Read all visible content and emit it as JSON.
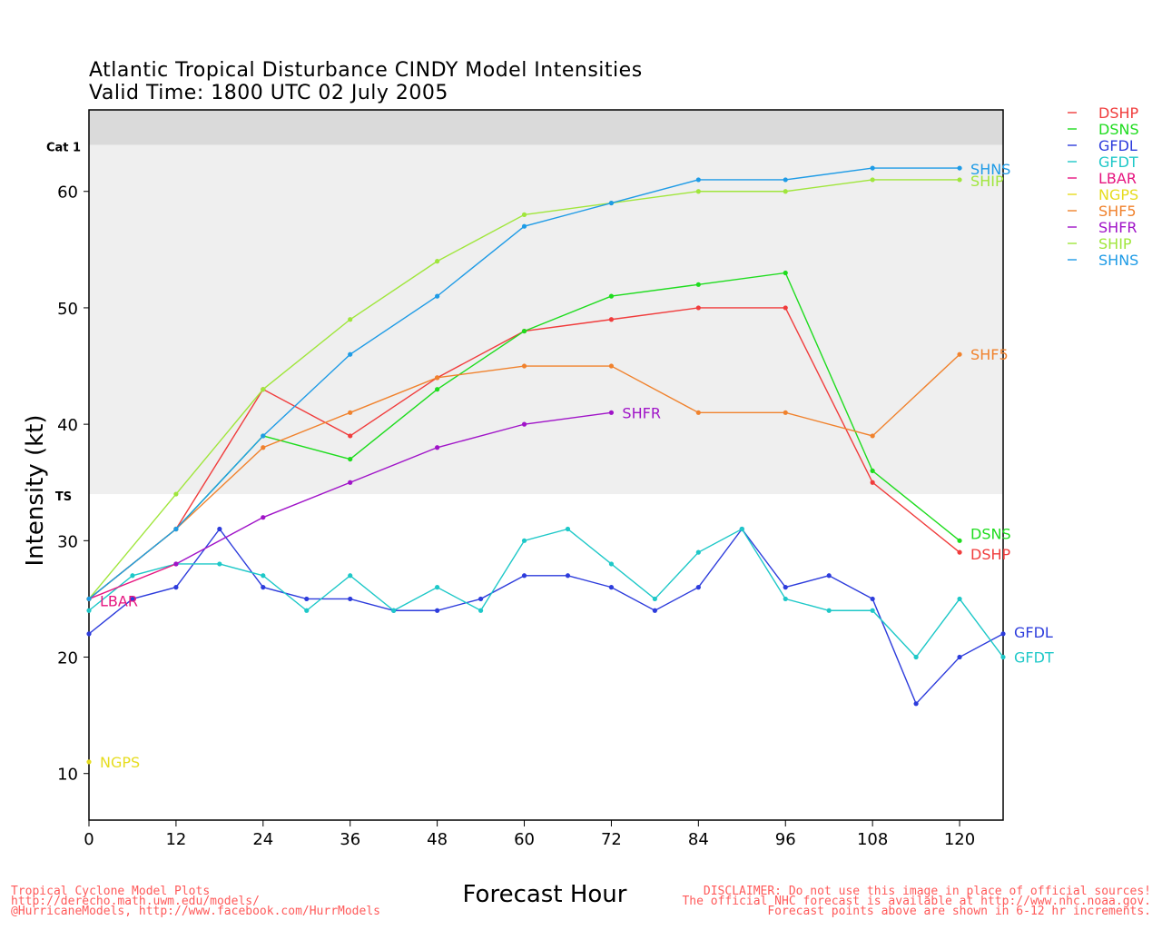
{
  "chart_data": {
    "type": "line",
    "title": "Atlantic Tropical Disturbance CINDY Model Intensities",
    "subtitle": "Valid Time: 1800 UTC 02 July 2005",
    "xlabel": "Forecast Hour",
    "ylabel": "Intensity (kt)",
    "xlim": [
      0,
      126
    ],
    "ylim": [
      6,
      67
    ],
    "xticks": [
      0,
      12,
      24,
      36,
      48,
      60,
      72,
      84,
      96,
      108,
      120
    ],
    "yticks": [
      10,
      20,
      30,
      40,
      50,
      60
    ],
    "bands": [
      {
        "label": "TS",
        "from": 34,
        "to": 64,
        "color": "#efefef"
      },
      {
        "label": "Cat 1",
        "from": 64,
        "to": 67,
        "color": "#dadada"
      }
    ],
    "legend_position": "right",
    "grid": false,
    "series": [
      {
        "name": "DSHP",
        "color": "#f03c3c",
        "end_label": "DSHP",
        "points": [
          [
            0,
            25
          ],
          [
            12,
            31
          ],
          [
            24,
            43
          ],
          [
            36,
            39
          ],
          [
            48,
            44
          ],
          [
            60,
            48
          ],
          [
            72,
            49
          ],
          [
            84,
            50
          ],
          [
            96,
            50
          ],
          [
            108,
            35
          ],
          [
            120,
            29
          ]
        ]
      },
      {
        "name": "DSNS",
        "color": "#1edc1e",
        "end_label": "DSNS",
        "points": [
          [
            0,
            25
          ],
          [
            12,
            31
          ],
          [
            24,
            39
          ],
          [
            36,
            37
          ],
          [
            48,
            43
          ],
          [
            60,
            48
          ],
          [
            72,
            51
          ],
          [
            84,
            52
          ],
          [
            96,
            53
          ],
          [
            108,
            36
          ],
          [
            120,
            30
          ]
        ]
      },
      {
        "name": "GFDL",
        "color": "#2d3cdc",
        "end_label": "GFDL",
        "points": [
          [
            0,
            22
          ],
          [
            6,
            25
          ],
          [
            12,
            26
          ],
          [
            18,
            31
          ],
          [
            24,
            26
          ],
          [
            30,
            25
          ],
          [
            36,
            25
          ],
          [
            42,
            24
          ],
          [
            48,
            24
          ],
          [
            54,
            25
          ],
          [
            60,
            27
          ],
          [
            66,
            27
          ],
          [
            72,
            26
          ],
          [
            78,
            24
          ],
          [
            84,
            26
          ],
          [
            90,
            31
          ],
          [
            96,
            26
          ],
          [
            102,
            27
          ],
          [
            108,
            25
          ],
          [
            114,
            16
          ],
          [
            120,
            20
          ],
          [
            126,
            22
          ]
        ]
      },
      {
        "name": "GFDT",
        "color": "#1ec8c8",
        "end_label": "GFDT",
        "points": [
          [
            0,
            24
          ],
          [
            6,
            27
          ],
          [
            12,
            28
          ],
          [
            18,
            28
          ],
          [
            24,
            27
          ],
          [
            30,
            24
          ],
          [
            36,
            27
          ],
          [
            42,
            24
          ],
          [
            48,
            26
          ],
          [
            54,
            24
          ],
          [
            60,
            30
          ],
          [
            66,
            31
          ],
          [
            72,
            28
          ],
          [
            78,
            25
          ],
          [
            84,
            29
          ],
          [
            90,
            31
          ],
          [
            96,
            25
          ],
          [
            102,
            24
          ],
          [
            108,
            24
          ],
          [
            114,
            20
          ],
          [
            120,
            25
          ],
          [
            126,
            20
          ]
        ]
      },
      {
        "name": "LBAR",
        "color": "#e6147f",
        "end_label": "LBAR",
        "points": [
          [
            0,
            25
          ],
          [
            12,
            28
          ]
        ]
      },
      {
        "name": "NGPS",
        "color": "#e6dc1e",
        "end_label": "NGPS",
        "points": [
          [
            0,
            11
          ]
        ]
      },
      {
        "name": "SHF5",
        "color": "#f0822d",
        "end_label": "SHF5",
        "points": [
          [
            0,
            25
          ],
          [
            12,
            31
          ],
          [
            24,
            38
          ],
          [
            36,
            41
          ],
          [
            48,
            44
          ],
          [
            60,
            45
          ],
          [
            72,
            45
          ],
          [
            84,
            41
          ],
          [
            96,
            41
          ],
          [
            108,
            39
          ],
          [
            120,
            46
          ]
        ]
      },
      {
        "name": "SHFR",
        "color": "#a014c8",
        "end_label": "SHFR",
        "points": [
          [
            12,
            28
          ],
          [
            24,
            32
          ],
          [
            36,
            35
          ],
          [
            48,
            38
          ],
          [
            60,
            40
          ],
          [
            72,
            41
          ]
        ]
      },
      {
        "name": "SHIP",
        "color": "#a0e63c",
        "end_label": "SHIP",
        "points": [
          [
            0,
            25
          ],
          [
            12,
            34
          ],
          [
            24,
            43
          ],
          [
            36,
            49
          ],
          [
            48,
            54
          ],
          [
            60,
            58
          ],
          [
            72,
            59
          ],
          [
            84,
            60
          ],
          [
            96,
            60
          ],
          [
            108,
            61
          ],
          [
            120,
            61
          ]
        ]
      },
      {
        "name": "SHNS",
        "color": "#1e9be6",
        "end_label": "SHNS",
        "points": [
          [
            0,
            25
          ],
          [
            12,
            31
          ],
          [
            24,
            39
          ],
          [
            36,
            46
          ],
          [
            48,
            51
          ],
          [
            60,
            57
          ],
          [
            72,
            59
          ],
          [
            84,
            61
          ],
          [
            96,
            61
          ],
          [
            108,
            62
          ],
          [
            120,
            62
          ]
        ]
      }
    ]
  },
  "footer": {
    "left_lines": [
      "Tropical Cyclone Model Plots",
      "http://derecho.math.uwm.edu/models/",
      "@HurricaneModels, http://www.facebook.com/HurrModels"
    ],
    "right_lines": [
      "DISCLAIMER: Do not use this image in place of official sources!",
      "The official NHC forecast is available at http://www.nhc.noaa.gov.",
      "Forecast points above are shown in 6-12 hr increments."
    ]
  }
}
